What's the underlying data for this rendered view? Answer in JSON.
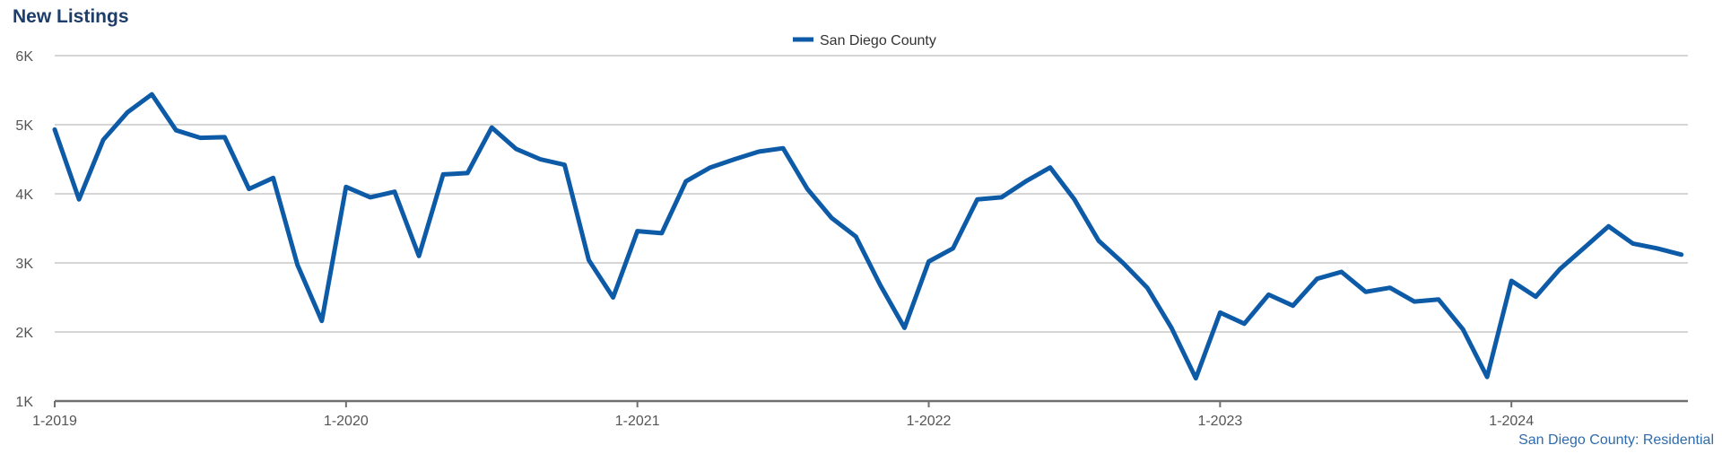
{
  "chart_data": {
    "type": "line",
    "title": "New Listings",
    "source": "San Diego County: Residential",
    "y_unit_suffix": "K",
    "ylim": [
      1000,
      6000
    ],
    "yticks": [
      1000,
      2000,
      3000,
      4000,
      5000,
      6000
    ],
    "grid": true,
    "legend_position": "top-center",
    "x_start": "2019-01",
    "x_tick_labels": [
      "1-2019",
      "1-2020",
      "1-2021",
      "1-2022",
      "1-2023",
      "1-2024"
    ],
    "series": [
      {
        "name": "San Diego County",
        "color": "#0d5aa7",
        "values": [
          4930,
          3920,
          4780,
          5180,
          5440,
          4920,
          4810,
          4820,
          4070,
          4230,
          2970,
          2160,
          4100,
          3950,
          4030,
          3100,
          4280,
          4300,
          4960,
          4650,
          4500,
          4420,
          3040,
          2500,
          3460,
          3430,
          4180,
          4380,
          4500,
          4610,
          4660,
          4070,
          3650,
          3380,
          2680,
          2060,
          3020,
          3210,
          3920,
          3950,
          4180,
          4380,
          3920,
          3320,
          3000,
          2640,
          2060,
          1330,
          2280,
          2120,
          2540,
          2380,
          2770,
          2870,
          2580,
          2640,
          2440,
          2470,
          2040,
          1350,
          2740,
          2510,
          2910,
          3220,
          3530,
          3280,
          3210,
          3120
        ]
      }
    ]
  }
}
